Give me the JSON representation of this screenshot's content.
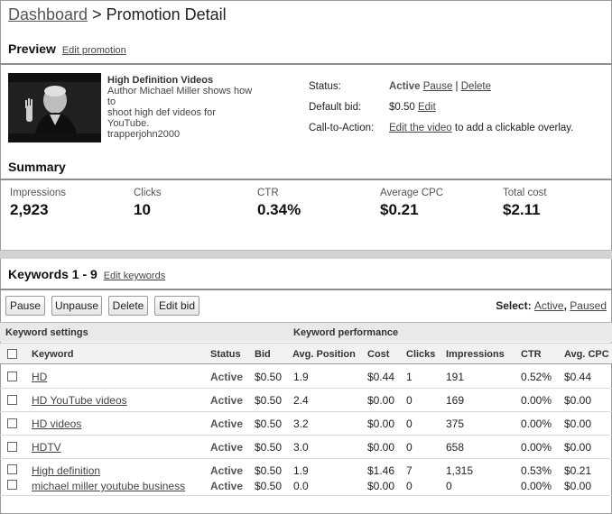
{
  "header": {
    "breadcrumb_link": "Dashboard",
    "breadcrumb_sep": ">",
    "page_title": "Promotion Detail"
  },
  "preview": {
    "heading": "Preview",
    "edit_link": "Edit promotion",
    "video": {
      "title": "High Definition Videos",
      "description_line1": "Author Michael Miller shows how to",
      "description_line2": "shoot high def videos for",
      "description_line3": "YouTube.",
      "channel": "trapperjohn2000"
    },
    "status_label": "Status:",
    "status_value": "Active",
    "pause_link": "Pause",
    "link_separator": "|",
    "delete_link": "Delete",
    "bid_label": "Default bid:",
    "bid_value": "$0.50",
    "bid_edit_link": "Edit",
    "cta_label": "Call-to-Action:",
    "cta_link": "Edit the video",
    "cta_text": "to add a clickable overlay."
  },
  "summary": {
    "heading": "Summary",
    "stats": [
      {
        "label": "Impressions",
        "value": "2,923"
      },
      {
        "label": "Clicks",
        "value": "10"
      },
      {
        "label": "CTR",
        "value": "0.34%"
      },
      {
        "label": "Average CPC",
        "value": "$0.21"
      },
      {
        "label": "Total cost",
        "value": "$2.11"
      }
    ]
  },
  "keywords": {
    "heading": "Keywords 1 - 9",
    "edit_link": "Edit keywords",
    "buttons": {
      "pause": "Pause",
      "unpause": "Unpause",
      "delete": "Delete",
      "edit_bid": "Edit bid"
    },
    "select_label": "Select:",
    "select_active": "Active",
    "select_sep": ",",
    "select_paused": "Paused",
    "group_settings": "Keyword settings",
    "group_performance": "Keyword performance",
    "columns": {
      "keyword": "Keyword",
      "status": "Status",
      "bid": "Bid",
      "avg_position": "Avg. Position",
      "cost": "Cost",
      "clicks": "Clicks",
      "impressions": "Impressions",
      "ctr": "CTR",
      "avg_cpc": "Avg. CPC"
    },
    "rows": [
      {
        "keyword": "HD",
        "status": "Active",
        "bid": "$0.50",
        "avg_position": "1.9",
        "cost": "$0.44",
        "clicks": "1",
        "impressions": "191",
        "ctr": "0.52%",
        "avg_cpc": "$0.44"
      },
      {
        "keyword": "HD YouTube videos",
        "status": "Active",
        "bid": "$0.50",
        "avg_position": "2.4",
        "cost": "$0.00",
        "clicks": "0",
        "impressions": "169",
        "ctr": "0.00%",
        "avg_cpc": "$0.00"
      },
      {
        "keyword": "HD videos",
        "status": "Active",
        "bid": "$0.50",
        "avg_position": "3.2",
        "cost": "$0.00",
        "clicks": "0",
        "impressions": "375",
        "ctr": "0.00%",
        "avg_cpc": "$0.00"
      },
      {
        "keyword": "HDTV",
        "status": "Active",
        "bid": "$0.50",
        "avg_position": "3.0",
        "cost": "$0.00",
        "clicks": "0",
        "impressions": "658",
        "ctr": "0.00%",
        "avg_cpc": "$0.00"
      },
      {
        "keyword": "High definition",
        "status": "Active",
        "bid": "$0.50",
        "avg_position": "1.9",
        "cost": "$1.46",
        "clicks": "7",
        "impressions": "1,315",
        "ctr": "0.53%",
        "avg_cpc": "$0.21"
      },
      {
        "keyword": "michael miller youtube business",
        "status": "Active",
        "bid": "$0.50",
        "avg_position": "0.0",
        "cost": "$0.00",
        "clicks": "0",
        "impressions": "0",
        "ctr": "0.00%",
        "avg_cpc": "$0.00"
      }
    ]
  }
}
